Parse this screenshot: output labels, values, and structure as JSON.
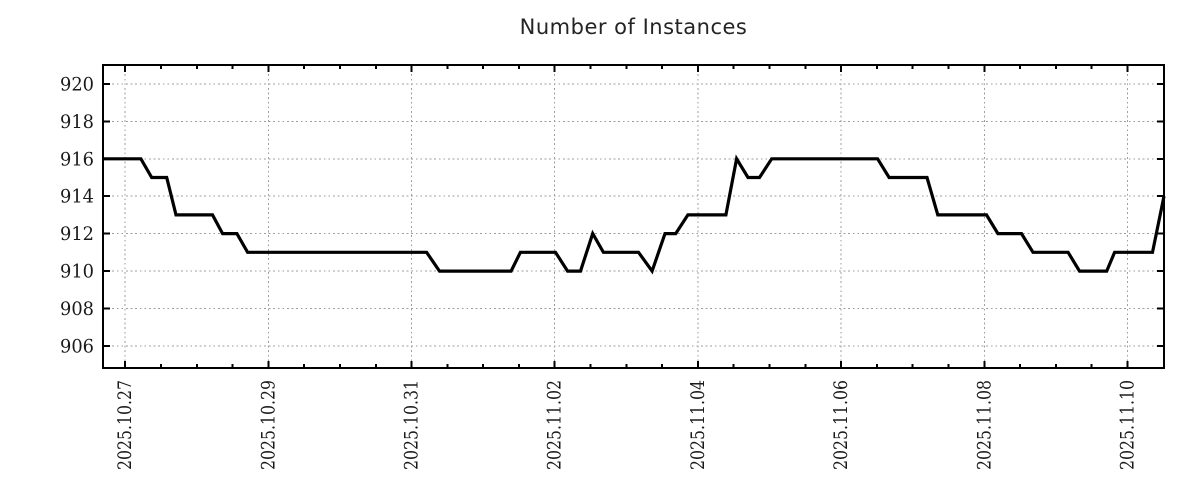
{
  "chart_data": {
    "type": "line",
    "title": "Number of Instances",
    "x_axis": {
      "tick_labels": [
        "2025.10.27",
        "2025.10.29",
        "2025.10.31",
        "2025.11.02",
        "2025.11.04",
        "2025.11.06",
        "2025.11.08",
        "2025.11.10"
      ],
      "tick_day_offsets": [
        0,
        2,
        4,
        6,
        8,
        10,
        12,
        14
      ],
      "minor_tick_step_days": 0.5,
      "range_days": [
        -0.31,
        14.51
      ]
    },
    "y_axis": {
      "ticks": [
        906,
        908,
        910,
        912,
        914,
        916,
        918,
        920
      ],
      "range": [
        904.82,
        921.01
      ]
    },
    "grid": true,
    "legend": "none",
    "series": [
      {
        "color": "#000000",
        "points_day_value": [
          [
            -0.31,
            916
          ],
          [
            0.22,
            916
          ],
          [
            0.37,
            915
          ],
          [
            0.58,
            915
          ],
          [
            0.71,
            913
          ],
          [
            1.22,
            913
          ],
          [
            1.36,
            912
          ],
          [
            1.56,
            912
          ],
          [
            1.71,
            911
          ],
          [
            4.21,
            911
          ],
          [
            4.39,
            910
          ],
          [
            5.39,
            910
          ],
          [
            5.52,
            911
          ],
          [
            6.01,
            911
          ],
          [
            6.18,
            910
          ],
          [
            6.36,
            910
          ],
          [
            6.53,
            912
          ],
          [
            6.68,
            911
          ],
          [
            7.17,
            911
          ],
          [
            7.36,
            910
          ],
          [
            7.54,
            912
          ],
          [
            7.69,
            912
          ],
          [
            7.86,
            913
          ],
          [
            8.39,
            913
          ],
          [
            8.54,
            916
          ],
          [
            8.7,
            915
          ],
          [
            8.86,
            915
          ],
          [
            9.03,
            916
          ],
          [
            10.51,
            916
          ],
          [
            10.67,
            915
          ],
          [
            11.2,
            915
          ],
          [
            11.35,
            913
          ],
          [
            12.03,
            913
          ],
          [
            12.19,
            912
          ],
          [
            12.52,
            912
          ],
          [
            12.68,
            911
          ],
          [
            13.17,
            911
          ],
          [
            13.33,
            910
          ],
          [
            13.71,
            910
          ],
          [
            13.82,
            911
          ],
          [
            14.35,
            911
          ],
          [
            14.51,
            914
          ]
        ]
      }
    ]
  },
  "colors": {
    "background": "#ffffff",
    "grid": "#9e9e9e",
    "axis": "#000000",
    "line": "#000000",
    "text": "#1a1a1a"
  }
}
